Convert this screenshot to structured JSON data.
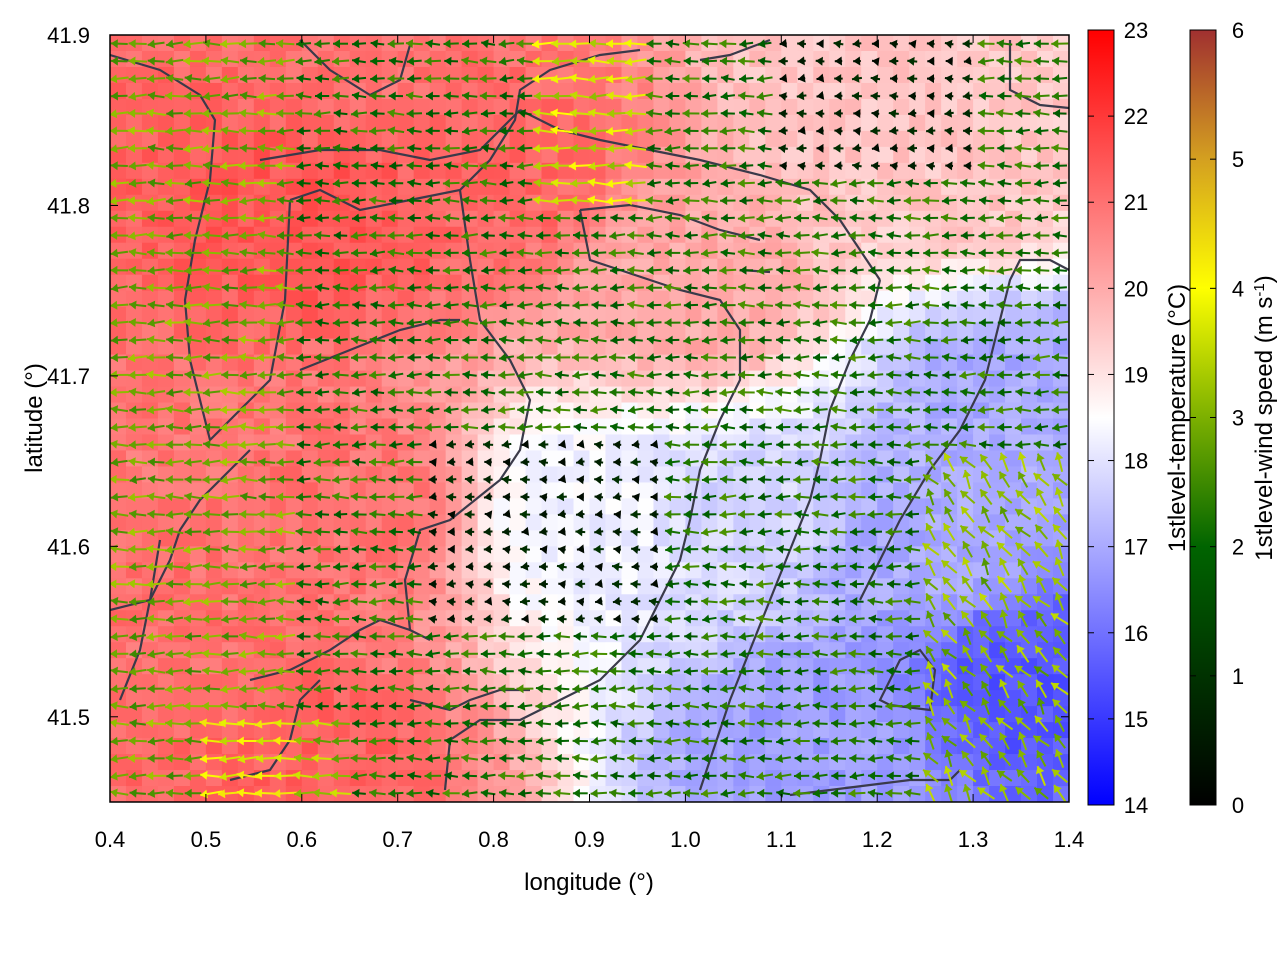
{
  "chart_data": {
    "type": "heatmap",
    "title": "",
    "xlabel": "longitude (°)",
    "ylabel": "latitude (°)",
    "xlim": [
      0.4,
      1.4
    ],
    "ylim": [
      41.45,
      41.9
    ],
    "x_ticks": [
      "0.4",
      "0.5",
      "0.6",
      "0.7",
      "0.8",
      "0.9",
      "1.0",
      "1.1",
      "1.2",
      "1.3",
      "1.4"
    ],
    "x_tick_values": [
      0.4,
      0.5,
      0.6,
      0.7,
      0.8,
      0.9,
      1.0,
      1.1,
      1.2,
      1.3,
      1.4
    ],
    "y_ticks": [
      "41.5",
      "41.6",
      "41.7",
      "41.8",
      "41.9"
    ],
    "y_tick_values": [
      41.5,
      41.6,
      41.7,
      41.8,
      41.9
    ],
    "grid": false,
    "temperature_colorbar": {
      "label": "1stlevel-temperature (°C)",
      "range": [
        14,
        23
      ],
      "ticks": [
        "14",
        "15",
        "16",
        "17",
        "18",
        "19",
        "20",
        "21",
        "22",
        "23"
      ],
      "tick_values": [
        14,
        15,
        16,
        17,
        18,
        19,
        20,
        21,
        22,
        23
      ],
      "colors": [
        "#0000ff",
        "#ffffff",
        "#ff0000"
      ]
    },
    "wind_colorbar": {
      "label": "1stlevel-wind speed (m s-1)",
      "label_main": "1stlevel-wind speed (m s",
      "label_sup": "-1",
      "label_end": ")",
      "range": [
        0,
        6
      ],
      "ticks": [
        "0",
        "1",
        "2",
        "3",
        "4",
        "5",
        "6"
      ],
      "tick_values": [
        0,
        1,
        2,
        3,
        4,
        5,
        6
      ],
      "colors": [
        "#000000",
        "#006400",
        "#7cb000",
        "#ffff00",
        "#d4a020",
        "#a03030"
      ]
    },
    "temperature_regions": [
      {
        "lon": 0.62,
        "lat": 41.8,
        "temp": 21.5
      },
      {
        "lon": 0.45,
        "lat": 41.55,
        "temp": 21.0
      },
      {
        "lon": 0.6,
        "lat": 41.47,
        "temp": 21.3
      },
      {
        "lon": 0.8,
        "lat": 41.82,
        "temp": 21.2
      },
      {
        "lon": 0.68,
        "lat": 41.88,
        "temp": 21.0
      },
      {
        "lon": 0.65,
        "lat": 41.62,
        "temp": 21.0
      },
      {
        "lon": 1.0,
        "lat": 41.75,
        "temp": 20.0
      },
      {
        "lon": 0.9,
        "lat": 41.62,
        "temp": 18.3
      },
      {
        "lon": 1.05,
        "lat": 41.62,
        "temp": 17.8
      },
      {
        "lon": 1.25,
        "lat": 41.6,
        "temp": 17.0
      },
      {
        "lon": 1.35,
        "lat": 41.52,
        "temp": 15.5
      },
      {
        "lon": 1.34,
        "lat": 41.69,
        "temp": 17.0
      },
      {
        "lon": 1.15,
        "lat": 41.48,
        "temp": 16.8
      },
      {
        "lon": 1.3,
        "lat": 41.82,
        "temp": 19.5
      },
      {
        "lon": 1.2,
        "lat": 41.88,
        "temp": 19.5
      }
    ]
  }
}
